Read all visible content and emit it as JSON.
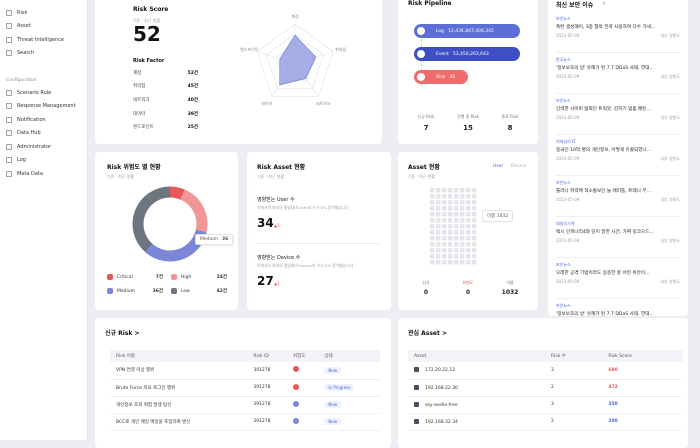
{
  "sidebar": {
    "top_items": [
      {
        "label": "Risk"
      },
      {
        "label": "Asset"
      },
      {
        "label": "Threat Intelligence"
      },
      {
        "label": "Search"
      }
    ],
    "section_label": "Configuration",
    "config_items": [
      {
        "label": "Scenario Rule"
      },
      {
        "label": "Response Management"
      },
      {
        "label": "Notification"
      },
      {
        "label": "Data Hub"
      },
      {
        "label": "Administrator"
      },
      {
        "label": "Log"
      },
      {
        "label": "Meta Data"
      }
    ]
  },
  "risk_score": {
    "title": "Risk Score",
    "subtitle": "기준 : 최근 현황",
    "value": "52",
    "factor_title": "Risk Factor",
    "factors": [
      {
        "name": "계정",
        "value": "52건"
      },
      {
        "name": "취약점",
        "value": "45건"
      },
      {
        "name": "네트워크",
        "value": "40건"
      },
      {
        "name": "데이터",
        "value": "39건"
      },
      {
        "name": "엔드포인트",
        "value": "25건"
      }
    ],
    "radar_labels": [
      "계정",
      "취약점",
      "네트워크",
      "데이터",
      "엔드포인트"
    ],
    "radar_values": [
      0.72,
      0.55,
      0.45,
      0.65,
      0.4
    ]
  },
  "pipeline": {
    "title": "Risk Pipeline",
    "pills": [
      {
        "label": "Log",
        "value": "12,434,847,404,345",
        "color": "#5b6fd6"
      },
      {
        "label": "Event",
        "value": "53,450,263,643",
        "color": "#3e4fc4"
      },
      {
        "label": "Risk",
        "value": "30",
        "color": "#f06b6b"
      }
    ],
    "stats": [
      {
        "label": "신규 Risk",
        "value": "7"
      },
      {
        "label": "진행 중 Risk",
        "value": "15"
      },
      {
        "label": "종료 Risk",
        "value": "8"
      }
    ]
  },
  "news": {
    "title": "최신 보안 이슈",
    "items": [
      {
        "cat": "보안뉴스",
        "title": "폭탄 생성해어, 3종 협박 전략 사용하여 다수 가세...",
        "date": "2023-05-09",
        "meta": "내부 영향도"
      },
      {
        "cat": "한국뉴스",
        "title": "'정보보호의 날' 유례가 된 7.7 DDoS 사태, 한대...",
        "date": "2023-05-09",
        "meta": "내부 영향도"
      },
      {
        "cat": "보안뉴스",
        "title": "강력한 사이버 범죄단 트릭봇, 감지기 멈춤 배틴...",
        "date": "2023-05-09",
        "meta": "내부 영향도"
      },
      {
        "cat": "이데일리 IT",
        "title": "중국인 10억 명의 개인정보, 어떻게 유출되었나...",
        "date": "2023-05-09",
        "meta": "내부 영향도"
      },
      {
        "cat": "보안뉴스",
        "title": "툴러나 취약매 적소통보인 늘 에러틀, 트레니 부...",
        "date": "2023-05-09",
        "meta": "내부 영향도"
      },
      {
        "cat": "데일리시큐",
        "title": "택시 인피나리4와 당이 말한 사건, 가짜 링크으드...",
        "date": "2023-05-09",
        "meta": "내부 영향도"
      },
      {
        "cat": "보안뉴스",
        "title": "오래한 공격 기법이라도 응용한 할 어떤 위안이...",
        "date": "2023-05-09",
        "meta": "내부 영향도"
      },
      {
        "cat": "보안뉴스",
        "title": "'정보보호의 날' 유례가 된 7.7 DDoS 사태, 한대...",
        "date": "",
        "meta": ""
      }
    ]
  },
  "grade": {
    "title": "Risk 위험도 별 현황",
    "subtitle": "기준 : 최근 현황",
    "tooltip_label": "Medium",
    "tooltip_value": "36",
    "legend": [
      {
        "label": "Critical",
        "value": "7건",
        "color": "#e8585a"
      },
      {
        "label": "High",
        "value": "24건",
        "color": "#f09696"
      },
      {
        "label": "Medium",
        "value": "36건",
        "color": "#7b86d8"
      },
      {
        "label": "Low",
        "value": "42건",
        "color": "#6d7580"
      }
    ],
    "slices": [
      7,
      24,
      36,
      42
    ]
  },
  "risk_asset": {
    "title": "Risk Asset 현황",
    "subtitle": "기준 : 최근 현황",
    "user_label": "영향받는 User 수",
    "user_desc": "이에서의 최내의 평일대비 User의 수가 5% 증가했습니다",
    "user_value": "34",
    "user_delta": "▲1",
    "device_label": "영향받는 Device 수",
    "device_desc": "이에서의 최내의 평일대비 Device의 수가 5% 증가했습니다",
    "device_value": "27",
    "device_delta": "▲1"
  },
  "asset_status": {
    "title": "Asset 현황",
    "subtitle": "기준 : 최근 현황",
    "toggle_user": "User",
    "toggle_device": "Device",
    "tooltip": "이름 1032",
    "stats": [
      {
        "label": "신규",
        "value": "0"
      },
      {
        "label": "위험도",
        "value": "0"
      },
      {
        "label": "이름",
        "value": "1032"
      }
    ]
  },
  "new_risk": {
    "title": "신규 Risk  >",
    "headers": [
      "Risk 이름",
      "Risk ID",
      "위험도",
      "상태"
    ],
    "rows": [
      {
        "name": "VPN 연결 이상 행위",
        "id": "391278",
        "level_color": "#e8585a",
        "status": "New"
      },
      {
        "name": "Brute Force 지요 로그인 행위",
        "id": "391278",
        "level_color": "#e8585a",
        "status": "In Progress"
      },
      {
        "name": "개인정보 조회 위험 발생 탐신",
        "id": "391278",
        "level_color": "#7b86d8",
        "status": "New"
      },
      {
        "name": "BCC로 개인 메일 메일을 포함하여 발신",
        "id": "391278",
        "level_color": "#7b86d8",
        "status": "New"
      }
    ]
  },
  "risk_asset_table": {
    "title": "관심 Asset  >",
    "headers": [
      "Asset",
      "Risk 수",
      "Risk Score"
    ],
    "rows": [
      {
        "name": "172.20.22.12",
        "count": "3",
        "score": "680",
        "score_color": "#e8585a"
      },
      {
        "name": "192.168.22.30",
        "count": "2",
        "score": "472",
        "score_color": "#e8585a"
      },
      {
        "name": "sky-asello-free",
        "count": "3",
        "score": "350",
        "score_color": "#4a66d8"
      },
      {
        "name": "192.168.32.34",
        "count": "2",
        "score": "280",
        "score_color": "#4a66d8"
      }
    ]
  }
}
